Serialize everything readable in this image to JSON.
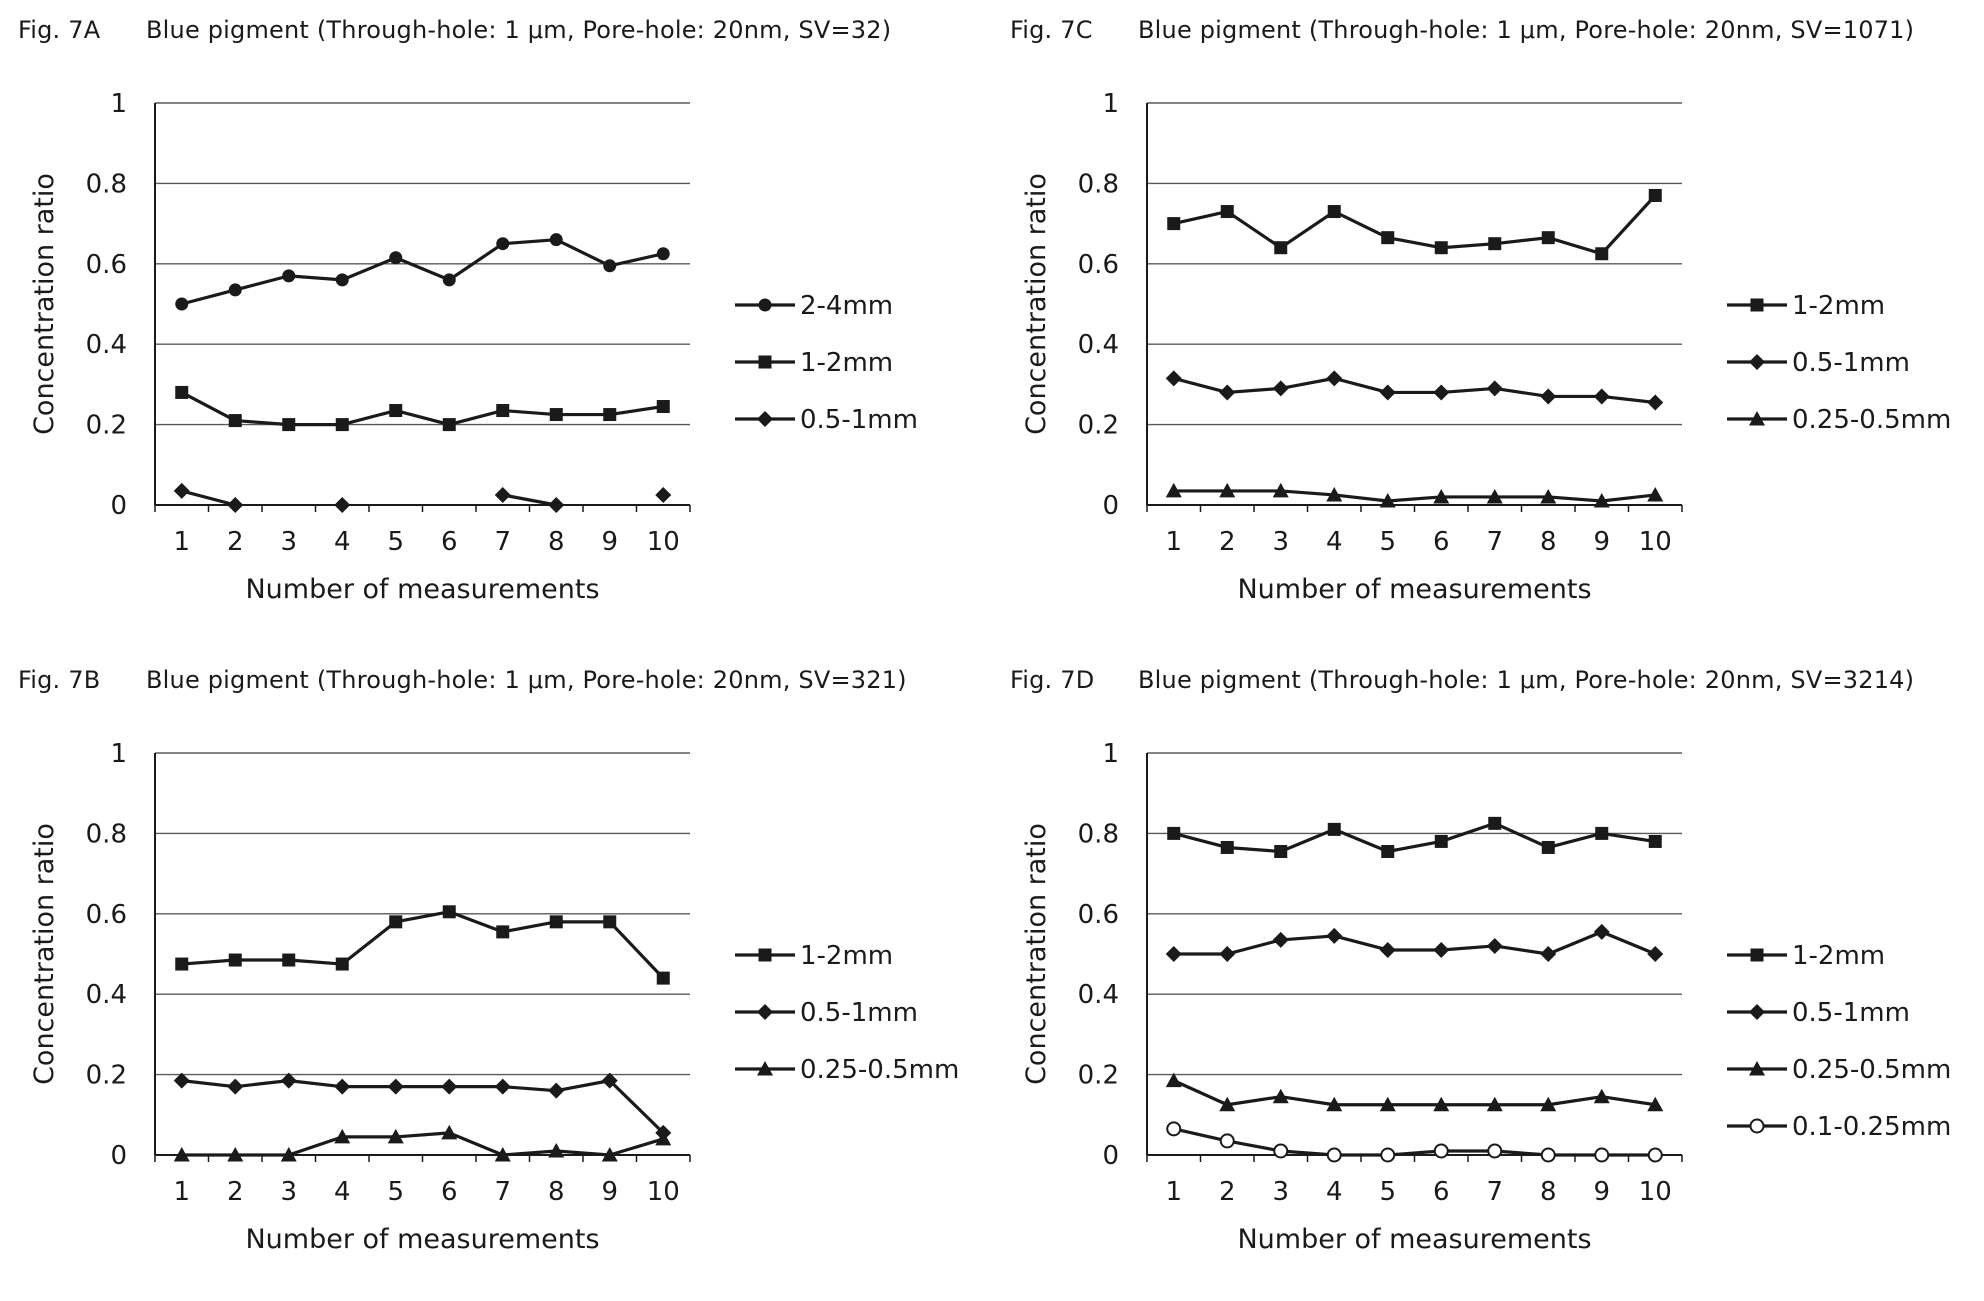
{
  "chart_data": [
    {
      "type": "line",
      "id": "Fig. 7A",
      "title": "Blue pigment (Through-hole: 1 μm, Pore-hole: 20nm, SV=32)",
      "xlabel": "Number of measurements",
      "ylabel": "Concentration ratio",
      "ylim": [
        0,
        1
      ],
      "yticks": [
        "0",
        "0.2",
        "0.4",
        "0.6",
        "0.8",
        "1"
      ],
      "categories": [
        "1",
        "2",
        "3",
        "4",
        "5",
        "6",
        "7",
        "8",
        "9",
        "10"
      ],
      "grid": true,
      "legend_position": "right",
      "series": [
        {
          "name": "2-4mm",
          "marker": "circle",
          "values": [
            0.5,
            0.535,
            0.57,
            0.56,
            0.615,
            0.56,
            0.65,
            0.66,
            0.595,
            0.625
          ]
        },
        {
          "name": "1-2mm",
          "marker": "square",
          "values": [
            0.28,
            0.21,
            0.2,
            0.2,
            0.235,
            0.2,
            0.235,
            0.225,
            0.225,
            0.245
          ]
        },
        {
          "name": "0.5-1mm",
          "marker": "diamond",
          "values": [
            0.035,
            0.0,
            null,
            0.0,
            null,
            null,
            0.025,
            0.0,
            null,
            0.025
          ]
        }
      ]
    },
    {
      "type": "line",
      "id": "Fig. 7C",
      "title": "Blue pigment (Through-hole: 1 μm, Pore-hole: 20nm, SV=1071)",
      "xlabel": "Number of measurements",
      "ylabel": "Concentration ratio",
      "ylim": [
        0,
        1
      ],
      "yticks": [
        "0",
        "0.2",
        "0.4",
        "0.6",
        "0.8",
        "1"
      ],
      "categories": [
        "1",
        "2",
        "3",
        "4",
        "5",
        "6",
        "7",
        "8",
        "9",
        "10"
      ],
      "grid": true,
      "legend_position": "right",
      "series": [
        {
          "name": "1-2mm",
          "marker": "square",
          "values": [
            0.7,
            0.73,
            0.64,
            0.73,
            0.665,
            0.64,
            0.65,
            0.665,
            0.625,
            0.77
          ]
        },
        {
          "name": "0.5-1mm",
          "marker": "diamond",
          "values": [
            0.315,
            0.28,
            0.29,
            0.315,
            0.28,
            0.28,
            0.29,
            0.27,
            0.27,
            0.255
          ]
        },
        {
          "name": "0.25-0.5mm",
          "marker": "triangle",
          "values": [
            0.035,
            0.035,
            0.035,
            0.025,
            0.01,
            0.02,
            0.02,
            0.02,
            0.01,
            0.025
          ]
        }
      ]
    },
    {
      "type": "line",
      "id": "Fig. 7B",
      "title": "Blue pigment (Through-hole: 1 μm, Pore-hole: 20nm, SV=321)",
      "xlabel": "Number of measurements",
      "ylabel": "Concentration ratio",
      "ylim": [
        0,
        1
      ],
      "yticks": [
        "0",
        "0.2",
        "0.4",
        "0.6",
        "0.8",
        "1"
      ],
      "categories": [
        "1",
        "2",
        "3",
        "4",
        "5",
        "6",
        "7",
        "8",
        "9",
        "10"
      ],
      "grid": true,
      "legend_position": "right",
      "series": [
        {
          "name": "1-2mm",
          "marker": "square",
          "values": [
            0.475,
            0.485,
            0.485,
            0.475,
            0.58,
            0.605,
            0.555,
            0.58,
            0.58,
            0.44
          ]
        },
        {
          "name": "0.5-1mm",
          "marker": "diamond",
          "values": [
            0.185,
            0.17,
            0.185,
            0.17,
            0.17,
            0.17,
            0.17,
            0.16,
            0.185,
            0.055
          ]
        },
        {
          "name": "0.25-0.5mm",
          "marker": "triangle",
          "values": [
            0.0,
            0.0,
            0.0,
            0.045,
            0.045,
            0.055,
            0.0,
            0.01,
            0.0,
            0.04
          ]
        }
      ]
    },
    {
      "type": "line",
      "id": "Fig. 7D",
      "title": "Blue pigment (Through-hole: 1 μm, Pore-hole: 20nm, SV=3214)",
      "xlabel": "Number of measurements",
      "ylabel": "Concentration ratio",
      "ylim": [
        0,
        1
      ],
      "yticks": [
        "0",
        "0.2",
        "0.4",
        "0.6",
        "0.8",
        "1"
      ],
      "categories": [
        "1",
        "2",
        "3",
        "4",
        "5",
        "6",
        "7",
        "8",
        "9",
        "10"
      ],
      "grid": true,
      "legend_position": "right",
      "series": [
        {
          "name": "1-2mm",
          "marker": "square",
          "values": [
            0.8,
            0.765,
            0.755,
            0.81,
            0.755,
            0.78,
            0.825,
            0.765,
            0.8,
            0.78
          ]
        },
        {
          "name": "0.5-1mm",
          "marker": "diamond",
          "values": [
            0.5,
            0.5,
            0.535,
            0.545,
            0.51,
            0.51,
            0.52,
            0.5,
            0.555,
            0.5
          ]
        },
        {
          "name": "0.25-0.5mm",
          "marker": "triangle",
          "values": [
            0.185,
            0.125,
            0.145,
            0.125,
            0.125,
            0.125,
            0.125,
            0.125,
            0.145,
            0.125
          ]
        },
        {
          "name": "0.1-0.25mm",
          "marker": "open-circle",
          "values": [
            0.065,
            0.035,
            0.01,
            0.0,
            0.0,
            0.01,
            0.01,
            0.0,
            0.0,
            0.0
          ]
        }
      ]
    }
  ]
}
